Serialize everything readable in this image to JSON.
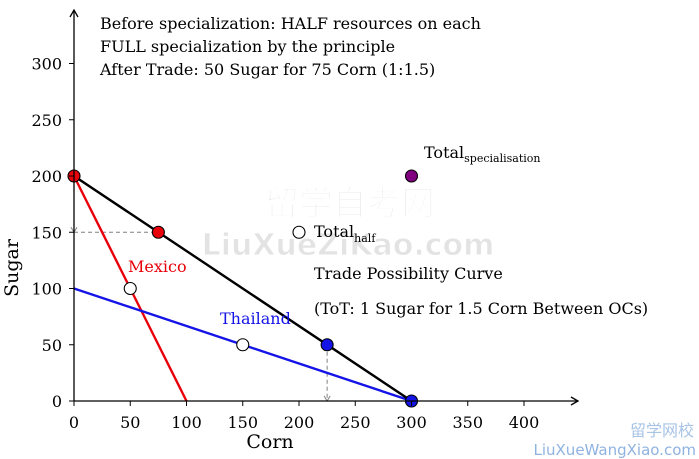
{
  "chart_data": {
    "type": "line",
    "xlabel": "Corn",
    "ylabel": "Sugar",
    "xlim": [
      0,
      450
    ],
    "ylim": [
      0,
      340
    ],
    "xticks": [
      0,
      50,
      100,
      150,
      200,
      250,
      300,
      350,
      400
    ],
    "yticks": [
      0,
      50,
      100,
      150,
      200,
      250,
      300
    ],
    "grid": false,
    "notes": [
      "Before specialization: HALF resources on each",
      "FULL specialization by the principle",
      "After Trade: 50 Sugar for 75 Corn (1:1.5)"
    ],
    "series": [
      {
        "name": "Mexico",
        "color": "#e8000b",
        "points": [
          [
            0,
            200
          ],
          [
            100,
            0
          ]
        ]
      },
      {
        "name": "Thailand",
        "color": "#1414e6",
        "points": [
          [
            0,
            100
          ],
          [
            300,
            0
          ]
        ]
      },
      {
        "name": "Trade Possibility Curve",
        "color": "#000000",
        "points": [
          [
            0,
            200
          ],
          [
            300,
            0
          ]
        ]
      }
    ],
    "markers": [
      {
        "x": 0,
        "y": 200,
        "fill": "#e8000b"
      },
      {
        "x": 75,
        "y": 150,
        "fill": "#e8000b"
      },
      {
        "x": 50,
        "y": 100,
        "fill": "#ffffff"
      },
      {
        "x": 150,
        "y": 50,
        "fill": "#ffffff"
      },
      {
        "x": 225,
        "y": 50,
        "fill": "#1414e6"
      },
      {
        "x": 300,
        "y": 0,
        "fill": "#1414e6"
      },
      {
        "x": 200,
        "y": 150,
        "fill": "#ffffff"
      },
      {
        "x": 300,
        "y": 200,
        "fill": "#800080"
      }
    ],
    "dashed": [
      [
        [
          0,
          200
        ],
        [
          0,
          150
        ]
      ],
      [
        [
          0,
          150
        ],
        [
          75,
          150
        ]
      ],
      [
        [
          225,
          50
        ],
        [
          225,
          0
        ]
      ],
      [
        [
          225,
          0
        ],
        [
          300,
          0
        ]
      ]
    ],
    "annotations": {
      "mexico": {
        "text": "Mexico",
        "color": "#e8000b"
      },
      "thailand": {
        "text": "Thailand",
        "color": "#1414e6"
      },
      "total_half": {
        "base": "Total",
        "sub": "half"
      },
      "total_spec": {
        "base": "Total",
        "sub": "specialisation"
      },
      "tpc": "Trade Possibility Curve",
      "tot": "(ToT: 1 Sugar for 1.5 Corn Between OCs)"
    }
  },
  "watermark": {
    "cn": "留学自考网",
    "en": "LiuXueZiKao.com",
    "corner_cn": "留学网校",
    "corner_en": "LiuXueWangXiao.com"
  }
}
